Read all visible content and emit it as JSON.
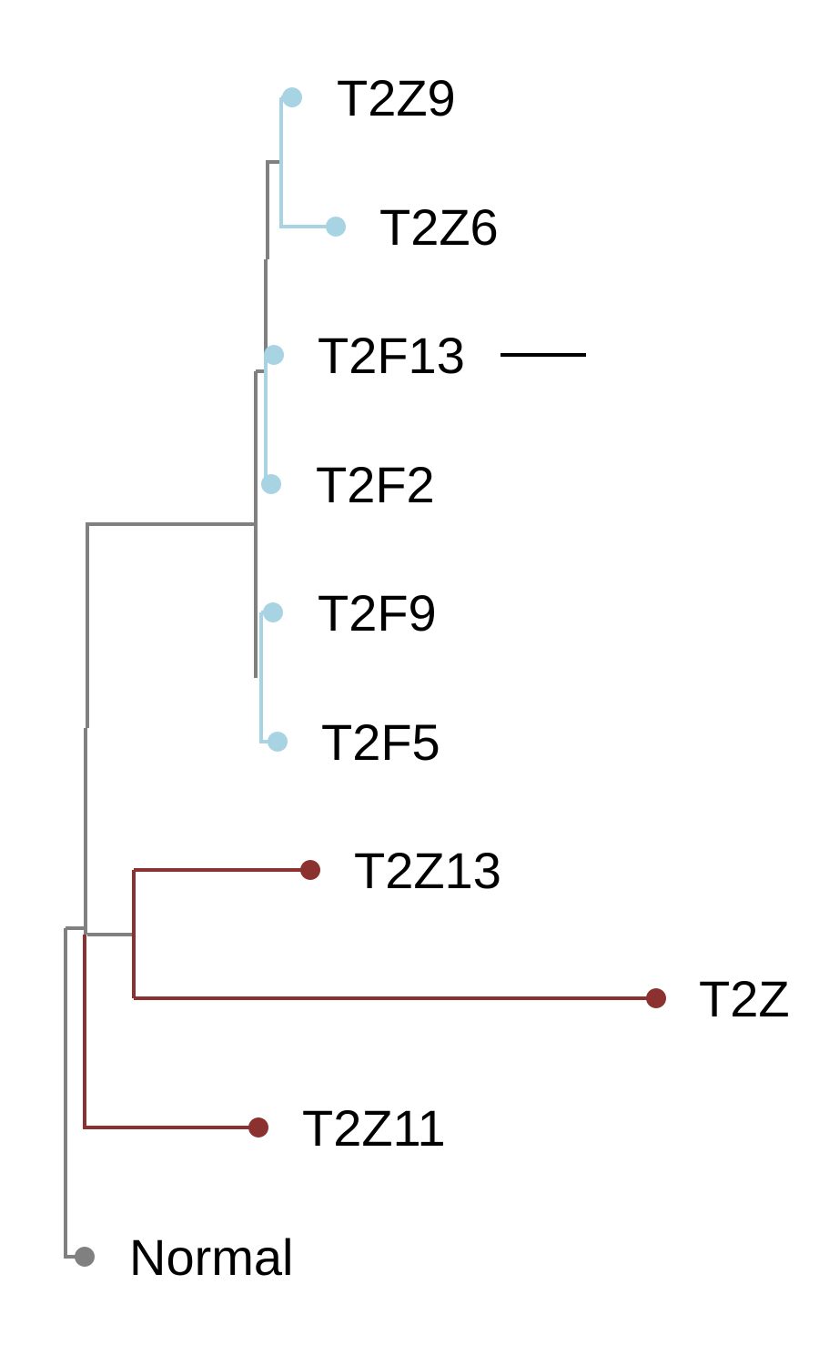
{
  "colors": {
    "grey": "#808080",
    "blue": "#a8d3e3",
    "red": "#8b3230",
    "scale": "#000000"
  },
  "leaves": [
    {
      "label": "T2Z9",
      "color": "blue"
    },
    {
      "label": "T2Z6",
      "color": "blue"
    },
    {
      "label": "T2F13",
      "color": "blue"
    },
    {
      "label": "T2F2",
      "color": "blue"
    },
    {
      "label": "T2F9",
      "color": "blue"
    },
    {
      "label": "T2F5",
      "color": "blue"
    },
    {
      "label": "T2Z13",
      "color": "red"
    },
    {
      "label": "T2Z",
      "color": "red"
    },
    {
      "label": "T2Z11",
      "color": "red"
    },
    {
      "label": "Normal",
      "color": "grey"
    }
  ],
  "has_scale_bar": true
}
